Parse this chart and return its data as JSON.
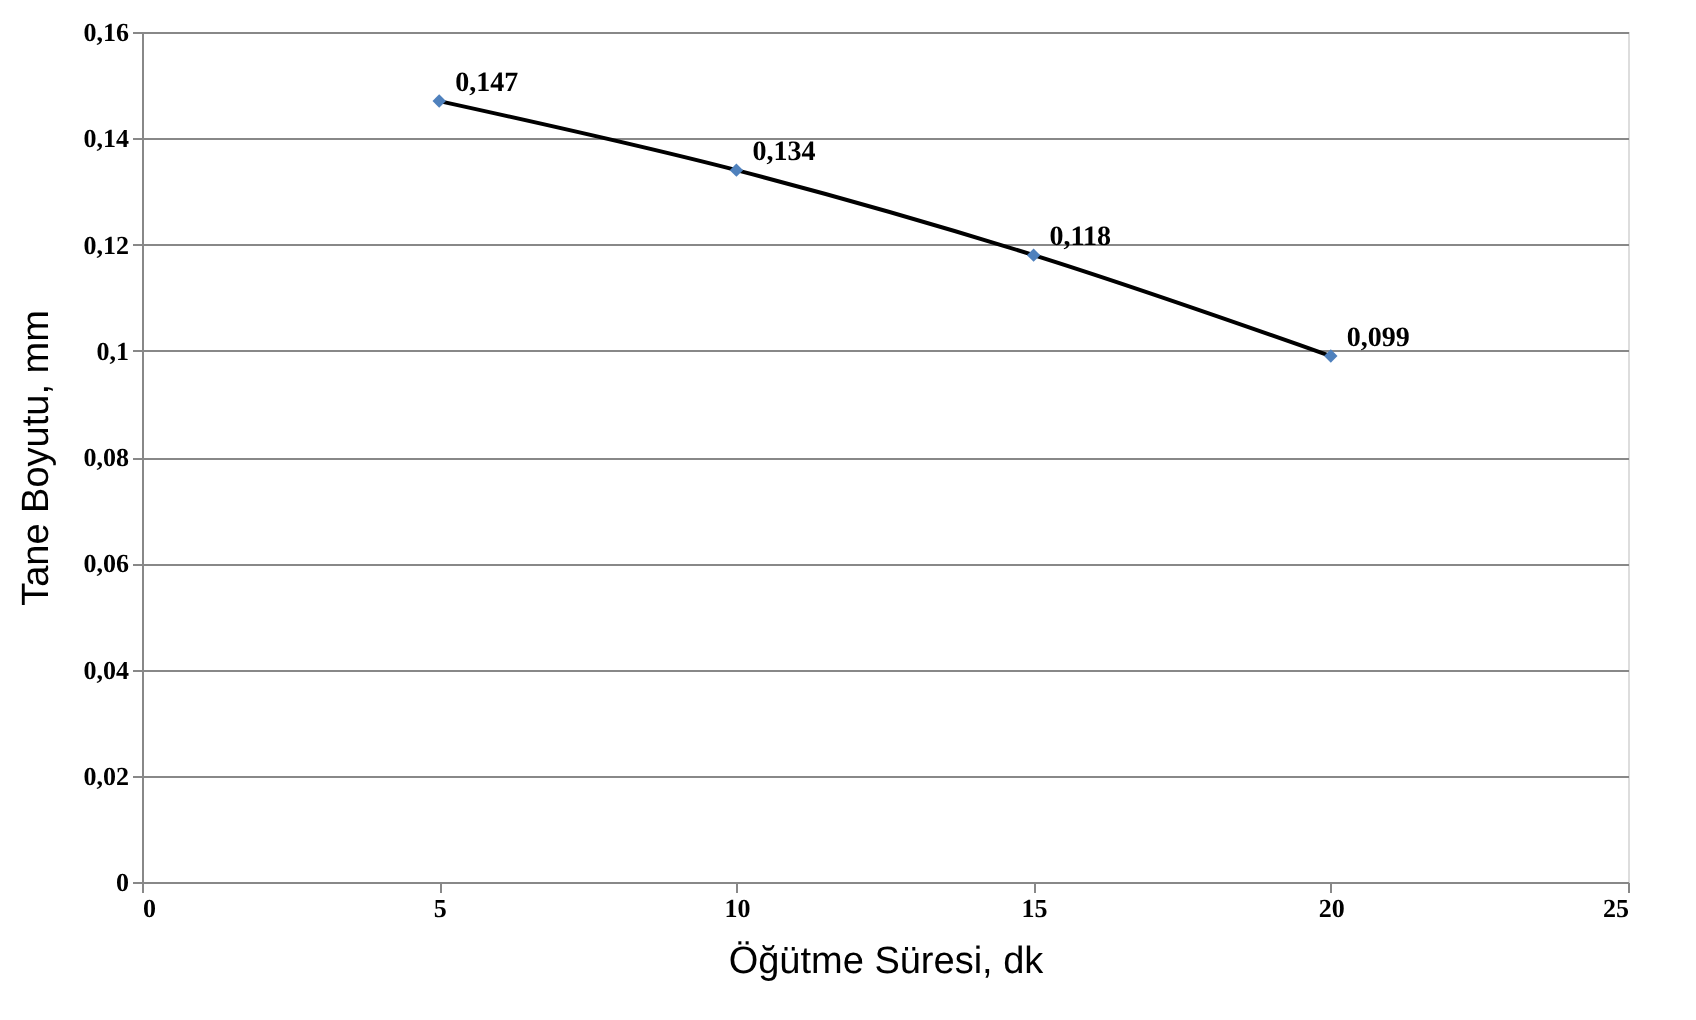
{
  "chart_data": {
    "type": "line",
    "xlabel": "Öğütme Süresi, dk",
    "ylabel": "Tane Boyutu, mm",
    "x": [
      5,
      10,
      15,
      20
    ],
    "series": [
      {
        "color": "#000000",
        "colors": [
          "#4f81bd",
          "#4f81bd",
          "#4f81bd",
          "#4f81bd"
        ],
        "values": [
          0.147,
          0.134,
          0.118,
          0.099
        ],
        "value_labels": [
          "0,147",
          "0,134",
          "0,118",
          "0,099"
        ]
      }
    ],
    "xlim": [
      0,
      25
    ],
    "xticks": [
      0,
      5,
      10,
      15,
      20,
      25
    ],
    "ylim": [
      0,
      0.16
    ],
    "yticks": [
      0,
      {
        "value": 0.02,
        "label": "0,02"
      },
      {
        "value": 0.04,
        "label": "0,04"
      },
      {
        "value": 0.06,
        "label": "0,06"
      },
      {
        "value": 0.08,
        "label": "0,08"
      },
      {
        "value": 0.1,
        "label": "0,1"
      },
      {
        "value": 0.12,
        "label": "0,12"
      },
      {
        "value": 0.14,
        "label": "0,14"
      },
      {
        "value": 0.16,
        "label": "0,16"
      }
    ],
    "grid": "y",
    "marker": "diamond",
    "line_style": "solid"
  }
}
